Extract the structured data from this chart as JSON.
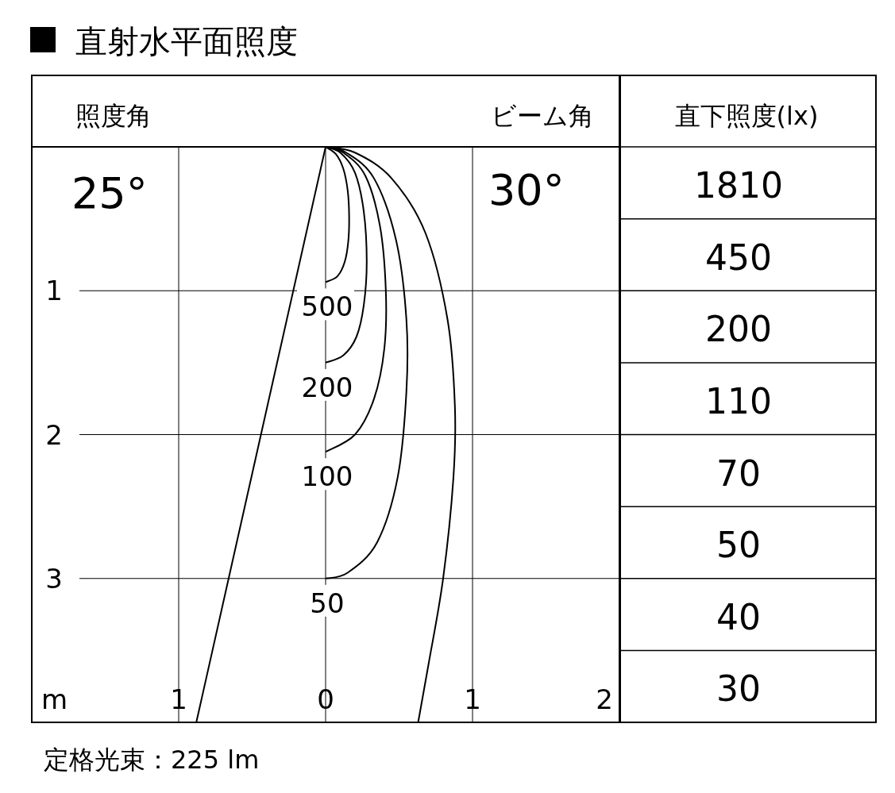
{
  "chart_data": {
    "type": "line",
    "title": "直射水平面照度",
    "xlabel": "m",
    "xlim": [
      -2,
      2
    ],
    "ylim": [
      4,
      0
    ],
    "xticks": [
      {
        "value": -1,
        "label": "1"
      },
      0,
      1,
      2
    ],
    "yticks": [
      1,
      2,
      3
    ],
    "grid": true,
    "line_style": "solid",
    "marker": "none",
    "series": [
      {
        "name": "500",
        "color": "#000000",
        "x": [
          0,
          0.07,
          0.12,
          0.15,
          0.16,
          0.155,
          0.13,
          0.08,
          0
        ],
        "values": [
          0,
          0.05,
          0.15,
          0.3,
          0.47,
          0.65,
          0.8,
          0.9,
          0.94
        ]
      },
      {
        "name": "200",
        "color": "#000000",
        "x": [
          0,
          0.1,
          0.2,
          0.26,
          0.28,
          0.26,
          0.21,
          0.12,
          0
        ],
        "values": [
          0,
          0.04,
          0.18,
          0.45,
          0.8,
          1.1,
          1.32,
          1.45,
          1.5
        ]
      },
      {
        "name": "100",
        "color": "#000000",
        "x": [
          0,
          0.12,
          0.27,
          0.37,
          0.41,
          0.4,
          0.33,
          0.2,
          0
        ],
        "values": [
          0,
          0.04,
          0.2,
          0.55,
          1.0,
          1.4,
          1.75,
          2.0,
          2.12
        ]
      },
      {
        "name": "50",
        "color": "#000000",
        "x": [
          0,
          0.14,
          0.33,
          0.48,
          0.55,
          0.55,
          0.49,
          0.35,
          0.15,
          0
        ],
        "values": [
          0,
          0.04,
          0.22,
          0.65,
          1.2,
          1.7,
          2.3,
          2.75,
          2.96,
          3.0
        ]
      },
      {
        "color": "#000000",
        "x": [
          0,
          0.2,
          0.45,
          0.68,
          0.83,
          0.88,
          0.87,
          0.8,
          0.7,
          0.63
        ],
        "values": [
          0,
          0.04,
          0.22,
          0.6,
          1.2,
          1.8,
          2.3,
          3.0,
          3.6,
          4.0
        ]
      },
      {
        "color": "#000000",
        "x": [
          0,
          -0.88
        ],
        "values": [
          0,
          4
        ]
      }
    ],
    "annotations": [
      "照度角",
      "25°",
      "ビーム角",
      "30°",
      "直下照度(lx)",
      "1810",
      "450",
      "200",
      "110",
      "70",
      "50",
      "40",
      "30",
      "定格光束：225 lm"
    ]
  }
}
